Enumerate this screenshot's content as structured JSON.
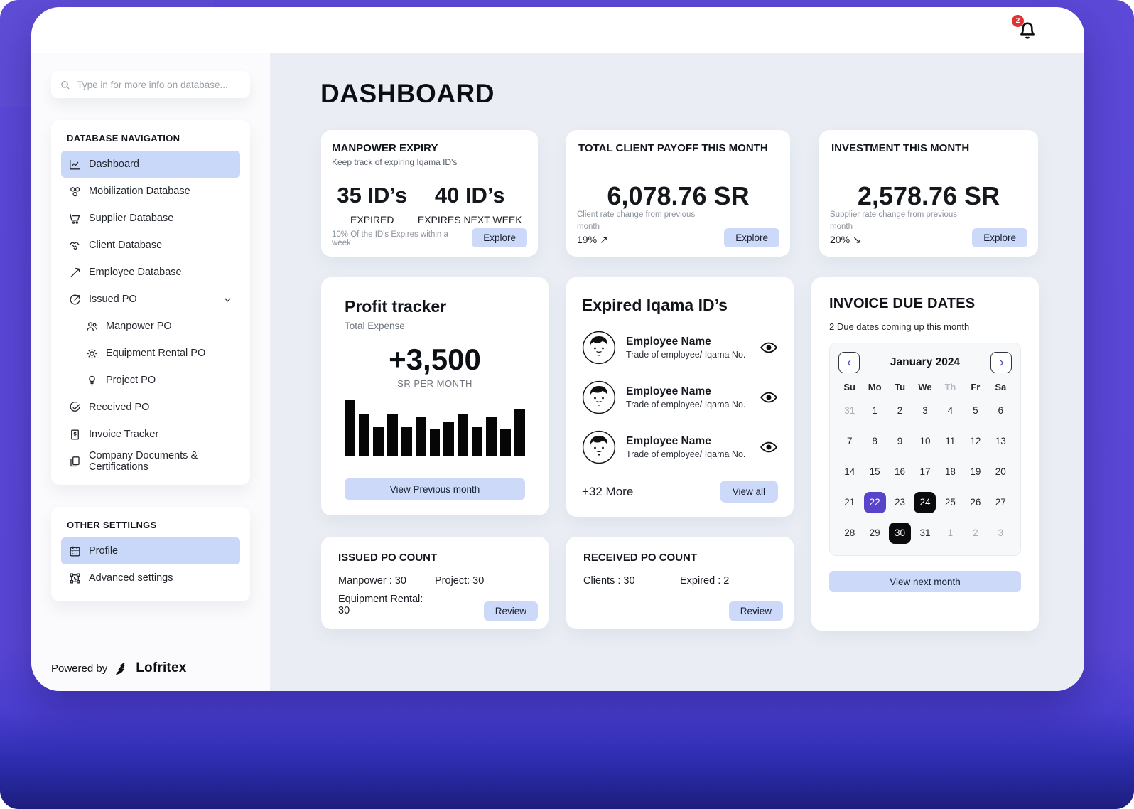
{
  "theme": {
    "frame_purple": "#5c49d8",
    "accent_periwinkle": "#ccd9f8",
    "active_item_blue": "#c9d8f8",
    "calendar_selected_purple": "#5a43cb",
    "calendar_selected_black": "#0b0b0e",
    "badge_red": "#e03434",
    "main_bg": "#eaeef4"
  },
  "topbar": {
    "notification_count": "2"
  },
  "sidebar": {
    "search": {
      "placeholder": "Type in for more info on database..."
    },
    "nav_title": "DATABASE NAVIGATION",
    "items": [
      {
        "label": "Dashboard",
        "icon": "chart-line"
      },
      {
        "label": "Mobilization Database",
        "icon": "modules"
      },
      {
        "label": "Supplier Database",
        "icon": "cart"
      },
      {
        "label": "Client Database",
        "icon": "handshake"
      },
      {
        "label": "Employee Database",
        "icon": "pickaxe"
      },
      {
        "label": "Issued PO",
        "icon": "share-circle"
      },
      {
        "label": "Manpower PO",
        "icon": "people"
      },
      {
        "label": "Equipment Rental PO",
        "icon": "gear"
      },
      {
        "label": "Project PO",
        "icon": "bulb"
      },
      {
        "label": "Received PO",
        "icon": "check-circle"
      },
      {
        "label": "Invoice Tracker",
        "icon": "receipt"
      },
      {
        "label": "Company Documents & Certifications",
        "icon": "documents"
      }
    ],
    "other_title": "OTHER SETTILNGS",
    "other_items": [
      {
        "label": "Profile",
        "icon": "calendar"
      },
      {
        "label": "Advanced settings",
        "icon": "transform"
      }
    ],
    "powered_by": "Powered by",
    "brand": "Lofritex"
  },
  "main": {
    "title": "DASHBOARD",
    "manpower_expiry": {
      "title": "MANPOWER EXPIRY",
      "subtitle": "Keep track of expiring Iqama ID's",
      "stat1_value": "35 ID’s",
      "stat1_label": "EXPIRED",
      "stat2_value": "40 ID’s",
      "stat2_label": "EXPIRES NEXT WEEK",
      "footnote": "10% Of the ID's Expires within a week",
      "button": "Explore"
    },
    "client_payoff": {
      "title": "TOTAL CLIENT PAYOFF THIS MONTH",
      "amount": "6,078.76 SR",
      "note": "Client rate change from previous month",
      "rate": "19%",
      "trend_arrow": "↗",
      "button": "Explore"
    },
    "investment": {
      "title": "INVESTMENT THIS MONTH",
      "amount": "2,578.76 SR",
      "note": "Supplier rate change from previous month",
      "rate": "20%",
      "trend_arrow": "↘",
      "button": "Explore"
    },
    "profit_tracker": {
      "title": "Profit tracker",
      "subtitle": "Total Expense",
      "amount": "+3,500",
      "unit": "SR PER MONTH",
      "button": "View Previous month"
    },
    "expired_iqama": {
      "title": "Expired Iqama ID’s",
      "rows": [
        {
          "name": "Employee Name",
          "detail": "Trade of employee/ Iqama No."
        },
        {
          "name": "Employee Name",
          "detail": "Trade of employee/ Iqama No."
        },
        {
          "name": "Employee Name",
          "detail": "Trade of employee/ Iqama No."
        }
      ],
      "more": "+32 More",
      "button": "View all"
    },
    "invoice_due": {
      "title": "INVOICE DUE DATES",
      "subtitle": "2 Due dates coming up this month",
      "button": "View next month"
    },
    "issued_po": {
      "title": "ISSUED PO COUNT",
      "stat1": "Manpower : 30",
      "stat2": "Project: 30",
      "stat3": "Equipment Rental: 30",
      "button": "Review"
    },
    "received_po": {
      "title": "RECEIVED PO COUNT",
      "stat1": "Clients : 30",
      "stat2": "Expired : 2",
      "button": "Review"
    }
  },
  "chart_data": {
    "type": "bar",
    "title": "Profit tracker — Total Expense",
    "values": [
      100,
      74,
      51,
      74,
      51,
      69,
      47,
      60,
      74,
      51,
      69,
      47,
      84
    ],
    "ylabel": "",
    "xlabel": "",
    "bar_color": "#060606",
    "note": "unlabeled mini bar chart, 13 bars, relative heights"
  },
  "calendar": {
    "month": "January 2024",
    "weekdays": [
      "Su",
      "Mo",
      "Tu",
      "We",
      "Th",
      "Fr",
      "Sa"
    ],
    "muted_weekday": "Th",
    "days": [
      {
        "d": "31",
        "muted": true
      },
      {
        "d": "1"
      },
      {
        "d": "2"
      },
      {
        "d": "3"
      },
      {
        "d": "4"
      },
      {
        "d": "5"
      },
      {
        "d": "6"
      },
      {
        "d": "7"
      },
      {
        "d": "8"
      },
      {
        "d": "9"
      },
      {
        "d": "10"
      },
      {
        "d": "11"
      },
      {
        "d": "12"
      },
      {
        "d": "13"
      },
      {
        "d": "14"
      },
      {
        "d": "15"
      },
      {
        "d": "16"
      },
      {
        "d": "17"
      },
      {
        "d": "18"
      },
      {
        "d": "19"
      },
      {
        "d": "20"
      },
      {
        "d": "21"
      },
      {
        "d": "22",
        "sel": "purple"
      },
      {
        "d": "23"
      },
      {
        "d": "24",
        "sel": "black"
      },
      {
        "d": "25"
      },
      {
        "d": "26"
      },
      {
        "d": "27"
      },
      {
        "d": "28"
      },
      {
        "d": "29"
      },
      {
        "d": "30",
        "sel": "black"
      },
      {
        "d": "31"
      },
      {
        "d": "1",
        "muted": true
      },
      {
        "d": "2",
        "muted": true
      },
      {
        "d": "3",
        "muted": true
      }
    ]
  }
}
